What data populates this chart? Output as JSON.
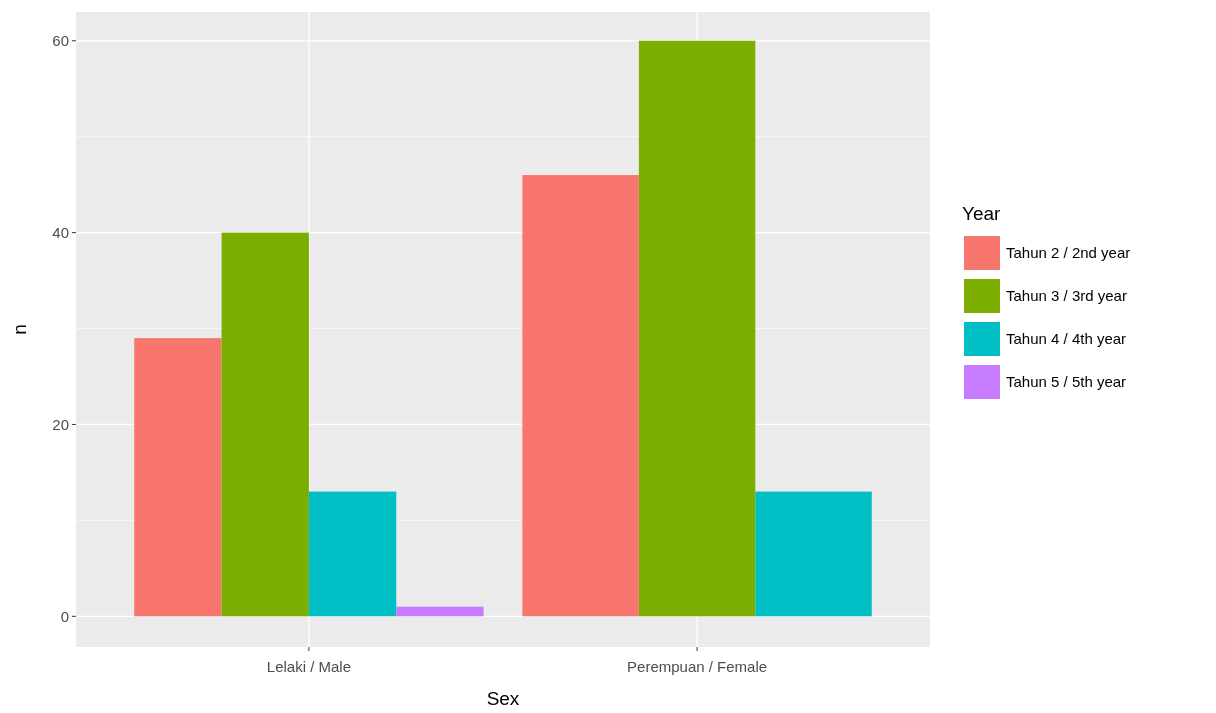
{
  "chart_data": {
    "type": "bar",
    "xlabel": "Sex",
    "ylabel": "n",
    "legend_title": "Year",
    "legend": "right",
    "grid": true,
    "categories": [
      "Lelaki / Male",
      "Perempuan / Female"
    ],
    "series": [
      {
        "name": "Tahun 2 / 2nd year",
        "color": "#f8766d",
        "values": [
          29,
          46
        ]
      },
      {
        "name": "Tahun 3 / 3rd year",
        "color": "#7cae00",
        "values": [
          40,
          60
        ]
      },
      {
        "name": "Tahun 4 / 4th year",
        "color": "#00bfc4",
        "values": [
          13,
          13
        ]
      },
      {
        "name": "Tahun 5 / 5th year",
        "color": "#c77cff",
        "values": [
          1,
          null
        ]
      }
    ],
    "ylim": [
      -3.2,
      63
    ],
    "yticks": [
      0,
      {
        "value": 10,
        "label": null
      },
      20,
      {
        "value": 30,
        "label": null
      },
      40,
      {
        "value": 50,
        "label": null
      },
      60
    ]
  }
}
